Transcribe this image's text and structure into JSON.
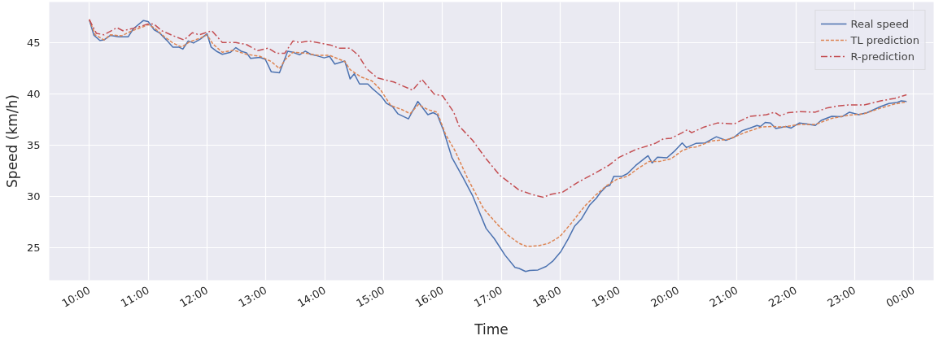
{
  "chart_data": {
    "type": "line",
    "xlabel": "Time",
    "ylabel": "Speed (km/h)",
    "xlim": [
      9.32,
      24.34
    ],
    "ylim": [
      21.85,
      49.0
    ],
    "xticks": [
      {
        "value": 10,
        "label": "10:00"
      },
      {
        "value": 11,
        "label": "11:00"
      },
      {
        "value": 12,
        "label": "12:00"
      },
      {
        "value": 13,
        "label": "13:00"
      },
      {
        "value": 14,
        "label": "14:00"
      },
      {
        "value": 15,
        "label": "15:00"
      },
      {
        "value": 16,
        "label": "16:00"
      },
      {
        "value": 17,
        "label": "17:00"
      },
      {
        "value": 18,
        "label": "18:00"
      },
      {
        "value": 19,
        "label": "19:00"
      },
      {
        "value": 20,
        "label": "20:00"
      },
      {
        "value": 21,
        "label": "21:00"
      },
      {
        "value": 22,
        "label": "22:00"
      },
      {
        "value": 23,
        "label": "23:00"
      },
      {
        "value": 24,
        "label": "00:00"
      }
    ],
    "yticks": [
      25,
      30,
      35,
      40,
      45
    ],
    "grid": true,
    "legend": "top right",
    "marker": "none",
    "series": [
      {
        "name": "Real speed",
        "color": "#4c72b0",
        "line_style": "solid",
        "x": [
          10.0,
          10.08,
          10.18,
          10.25,
          10.36,
          10.5,
          10.66,
          10.75,
          10.92,
          11.0,
          11.1,
          11.19,
          11.31,
          11.42,
          11.52,
          11.59,
          11.68,
          11.77,
          11.89,
          12.0,
          12.07,
          12.16,
          12.26,
          12.4,
          12.49,
          12.58,
          12.67,
          12.74,
          12.9,
          12.99,
          13.09,
          13.23,
          13.37,
          13.46,
          13.57,
          13.67,
          13.76,
          13.87,
          13.99,
          14.08,
          14.17,
          14.34,
          14.43,
          14.5,
          14.59,
          14.73,
          14.8,
          14.87,
          14.96,
          15.05,
          15.15,
          15.24,
          15.42,
          15.58,
          15.75,
          15.84,
          15.91,
          16.02,
          16.16,
          16.35,
          16.51,
          16.74,
          16.88,
          17.06,
          17.23,
          17.3,
          17.41,
          17.48,
          17.62,
          17.76,
          17.87,
          18.01,
          18.13,
          18.24,
          18.36,
          18.5,
          18.61,
          18.68,
          18.78,
          18.84,
          18.91,
          19.05,
          19.14,
          19.28,
          19.49,
          19.56,
          19.65,
          19.81,
          19.93,
          20.07,
          20.14,
          20.3,
          20.46,
          20.65,
          20.81,
          20.95,
          21.09,
          21.22,
          21.34,
          21.4,
          21.48,
          21.57,
          21.66,
          21.83,
          21.92,
          22.06,
          22.2,
          22.33,
          22.43,
          22.61,
          22.78,
          22.91,
          23.07,
          23.21,
          23.44,
          23.58,
          23.72,
          23.79,
          23.88
        ],
        "values": [
          47.25,
          45.75,
          45.25,
          45.3,
          45.75,
          45.6,
          45.6,
          46.4,
          47.2,
          47.1,
          46.3,
          46.0,
          45.3,
          44.6,
          44.6,
          44.4,
          45.2,
          45.0,
          45.4,
          45.9,
          44.6,
          44.2,
          43.9,
          44.1,
          44.55,
          44.2,
          44.05,
          43.5,
          43.6,
          43.4,
          42.2,
          42.1,
          44.2,
          44.1,
          43.85,
          44.2,
          43.9,
          43.75,
          43.55,
          43.7,
          42.95,
          43.25,
          41.5,
          42.0,
          41.0,
          41.0,
          40.6,
          40.25,
          39.8,
          39.1,
          38.8,
          38.1,
          37.6,
          39.3,
          38.0,
          38.2,
          38.0,
          36.4,
          33.8,
          31.85,
          30.1,
          26.9,
          25.9,
          24.3,
          23.1,
          23.0,
          22.7,
          22.8,
          22.85,
          23.2,
          23.7,
          24.65,
          25.85,
          27.1,
          27.85,
          29.2,
          29.85,
          30.4,
          31.0,
          31.1,
          32.0,
          32.0,
          32.25,
          33.05,
          34.0,
          33.3,
          33.85,
          33.8,
          34.4,
          35.25,
          34.8,
          35.2,
          35.25,
          35.85,
          35.5,
          35.8,
          36.45,
          36.7,
          36.95,
          36.85,
          37.25,
          37.2,
          36.65,
          36.85,
          36.7,
          37.2,
          37.1,
          36.95,
          37.45,
          37.85,
          37.8,
          38.25,
          38.0,
          38.2,
          38.8,
          39.1,
          39.2,
          39.35,
          39.3
        ]
      },
      {
        "name": "TL prediction",
        "color": "#dd8452",
        "line_style": "dashed",
        "x": [
          10.0,
          10.1,
          10.25,
          10.36,
          10.55,
          10.73,
          10.92,
          11.0,
          11.1,
          11.28,
          11.42,
          11.57,
          11.7,
          11.89,
          12.0,
          12.1,
          12.26,
          12.45,
          12.67,
          12.9,
          13.09,
          13.23,
          13.33,
          13.46,
          13.69,
          13.87,
          14.08,
          14.34,
          14.43,
          14.61,
          14.8,
          14.94,
          15.12,
          15.31,
          15.45,
          15.59,
          15.75,
          15.91,
          16.05,
          16.21,
          16.42,
          16.69,
          16.93,
          17.11,
          17.3,
          17.43,
          17.62,
          17.8,
          17.99,
          18.17,
          18.41,
          18.59,
          18.78,
          18.96,
          19.14,
          19.33,
          19.51,
          19.69,
          19.88,
          20.07,
          20.21,
          20.3,
          20.58,
          20.86,
          21.13,
          21.41,
          21.6,
          21.78,
          22.06,
          22.33,
          22.61,
          22.89,
          23.16,
          23.44,
          23.68,
          23.88
        ],
        "values": [
          47.3,
          45.8,
          45.3,
          45.8,
          45.7,
          46.2,
          46.6,
          46.8,
          46.5,
          45.6,
          45.0,
          44.6,
          45.1,
          45.5,
          45.8,
          44.9,
          44.1,
          44.3,
          43.9,
          43.7,
          43.2,
          42.5,
          43.4,
          44.1,
          44.0,
          43.8,
          43.8,
          43.2,
          42.4,
          41.7,
          41.3,
          40.5,
          38.9,
          38.5,
          38.1,
          39.0,
          38.5,
          38.25,
          36.1,
          34.5,
          31.85,
          28.9,
          27.3,
          26.25,
          25.45,
          25.15,
          25.2,
          25.45,
          26.1,
          27.3,
          29.05,
          30.1,
          31.05,
          31.7,
          32.0,
          32.8,
          33.45,
          33.45,
          33.7,
          34.5,
          34.8,
          34.85,
          35.45,
          35.6,
          36.25,
          36.8,
          36.85,
          36.8,
          37.05,
          37.05,
          37.65,
          37.95,
          38.1,
          38.65,
          39.05,
          39.25
        ]
      },
      {
        "name": "R-prediction",
        "color": "#c44e52",
        "line_style": "dashdot",
        "x": [
          10.0,
          10.12,
          10.25,
          10.47,
          10.57,
          10.76,
          11.0,
          11.1,
          11.23,
          11.43,
          11.61,
          11.75,
          11.87,
          12.08,
          12.26,
          12.49,
          12.67,
          12.86,
          13.04,
          13.18,
          13.32,
          13.46,
          13.57,
          13.73,
          13.87,
          14.1,
          14.24,
          14.43,
          14.57,
          14.71,
          14.89,
          15.17,
          15.49,
          15.65,
          15.86,
          16.0,
          16.19,
          16.28,
          16.51,
          16.74,
          16.97,
          17.3,
          17.53,
          17.71,
          17.85,
          18.04,
          18.31,
          18.59,
          18.82,
          19.0,
          19.28,
          19.61,
          19.75,
          19.88,
          20.07,
          20.16,
          20.23,
          20.44,
          20.67,
          20.95,
          21.22,
          21.5,
          21.64,
          21.73,
          21.87,
          22.06,
          22.33,
          22.52,
          22.71,
          22.89,
          23.16,
          23.44,
          23.68,
          23.88
        ],
        "values": [
          47.3,
          45.95,
          45.8,
          46.5,
          46.2,
          46.45,
          46.85,
          46.85,
          46.2,
          45.7,
          45.3,
          46.0,
          45.8,
          46.2,
          45.05,
          45.05,
          44.85,
          44.25,
          44.5,
          44.0,
          44.0,
          45.2,
          45.05,
          45.2,
          45.05,
          44.8,
          44.5,
          44.5,
          43.8,
          42.5,
          41.6,
          41.2,
          40.4,
          41.45,
          40.0,
          39.85,
          38.25,
          36.9,
          35.5,
          33.7,
          32.1,
          30.65,
          30.2,
          29.95,
          30.25,
          30.45,
          31.45,
          32.3,
          33.05,
          33.85,
          34.6,
          35.2,
          35.65,
          35.7,
          36.25,
          36.55,
          36.25,
          36.8,
          37.2,
          37.1,
          37.85,
          38.0,
          38.25,
          37.9,
          38.2,
          38.3,
          38.25,
          38.65,
          38.85,
          38.95,
          38.95,
          39.35,
          39.6,
          39.95
        ]
      }
    ]
  }
}
